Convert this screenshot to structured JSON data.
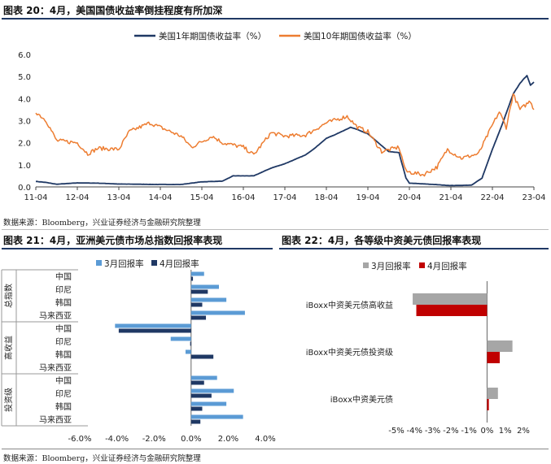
{
  "fig20": {
    "title": "图表 20：4月，美国国债收益率倒挂程度有所加深",
    "source": "数据来源：Bloomberg，兴业证券经济与金融研究院整理"
  },
  "fig21": {
    "title": "图表 21：4月，亚洲美元债市场总指数回报率表现"
  },
  "fig22": {
    "title": "图表 22：4月，各等级中资美元债回报率表现"
  },
  "bottom_source": "数据来源：Bloomberg，兴业证券经济与金融研究院整理",
  "colors": {
    "navy": "#1f3864",
    "orange": "#ed7d31",
    "light_blue": "#5b9bd5",
    "grey": "#a6a6a6",
    "red": "#c00000"
  },
  "chart_data": [
    {
      "id": "fig20",
      "type": "line",
      "x_tick_labels": [
        "11-04",
        "12-04",
        "13-04",
        "14-04",
        "15-04",
        "16-04",
        "17-04",
        "18-04",
        "19-04",
        "20-04",
        "21-04",
        "22-04",
        "23-04"
      ],
      "x_range": [
        "2011-04",
        "2023-04"
      ],
      "y_tick_labels": [
        "0.0",
        "1.0",
        "2.0",
        "3.0",
        "4.0",
        "5.0",
        "6.0"
      ],
      "ylim": [
        0,
        6
      ],
      "legend_position": "top",
      "series": [
        {
          "name": "美国1年期国债收益率（%）",
          "color": "#1f3864",
          "points": [
            [
              "2011-04",
              0.25
            ],
            [
              "2011-07",
              0.2
            ],
            [
              "2011-10",
              0.12
            ],
            [
              "2012-04",
              0.18
            ],
            [
              "2012-10",
              0.17
            ],
            [
              "2013-04",
              0.13
            ],
            [
              "2013-10",
              0.12
            ],
            [
              "2014-04",
              0.11
            ],
            [
              "2014-10",
              0.11
            ],
            [
              "2015-04",
              0.23
            ],
            [
              "2015-10",
              0.26
            ],
            [
              "2016-01",
              0.5
            ],
            [
              "2016-07",
              0.5
            ],
            [
              "2016-12",
              0.85
            ],
            [
              "2017-04",
              1.05
            ],
            [
              "2017-10",
              1.45
            ],
            [
              "2018-01",
              1.8
            ],
            [
              "2018-04",
              2.2
            ],
            [
              "2018-07",
              2.4
            ],
            [
              "2018-11",
              2.7
            ],
            [
              "2019-01",
              2.6
            ],
            [
              "2019-04",
              2.4
            ],
            [
              "2019-07",
              2.0
            ],
            [
              "2019-10",
              1.6
            ],
            [
              "2020-01",
              1.55
            ],
            [
              "2020-03",
              0.4
            ],
            [
              "2020-04",
              0.17
            ],
            [
              "2020-10",
              0.12
            ],
            [
              "2021-04",
              0.06
            ],
            [
              "2021-10",
              0.08
            ],
            [
              "2022-01",
              0.4
            ],
            [
              "2022-04",
              1.7
            ],
            [
              "2022-07",
              2.9
            ],
            [
              "2022-10",
              4.2
            ],
            [
              "2022-12",
              4.7
            ],
            [
              "2023-02",
              5.05
            ],
            [
              "2023-03",
              4.6
            ],
            [
              "2023-04",
              4.75
            ]
          ]
        },
        {
          "name": "美国10年期国债收益率（%）",
          "color": "#ed7d31",
          "points": [
            [
              "2011-04",
              3.4
            ],
            [
              "2011-07",
              3.0
            ],
            [
              "2011-10",
              2.1
            ],
            [
              "2012-04",
              2.0
            ],
            [
              "2012-07",
              1.5
            ],
            [
              "2012-10",
              1.75
            ],
            [
              "2013-04",
              1.7
            ],
            [
              "2013-07",
              2.5
            ],
            [
              "2013-10",
              2.7
            ],
            [
              "2014-01",
              2.9
            ],
            [
              "2014-04",
              2.7
            ],
            [
              "2014-10",
              2.3
            ],
            [
              "2015-01",
              1.8
            ],
            [
              "2015-07",
              2.3
            ],
            [
              "2015-10",
              2.0
            ],
            [
              "2016-04",
              1.8
            ],
            [
              "2016-07",
              1.45
            ],
            [
              "2016-12",
              2.45
            ],
            [
              "2017-04",
              2.3
            ],
            [
              "2017-10",
              2.35
            ],
            [
              "2018-04",
              2.9
            ],
            [
              "2018-10",
              3.2
            ],
            [
              "2019-01",
              2.7
            ],
            [
              "2019-04",
              2.5
            ],
            [
              "2019-08",
              1.6
            ],
            [
              "2020-01",
              1.8
            ],
            [
              "2020-03",
              0.7
            ],
            [
              "2020-08",
              0.55
            ],
            [
              "2020-12",
              0.9
            ],
            [
              "2021-03",
              1.7
            ],
            [
              "2021-07",
              1.3
            ],
            [
              "2021-12",
              1.5
            ],
            [
              "2022-04",
              2.8
            ],
            [
              "2022-06",
              3.4
            ],
            [
              "2022-08",
              2.7
            ],
            [
              "2022-10",
              4.2
            ],
            [
              "2022-12",
              3.5
            ],
            [
              "2023-03",
              3.9
            ],
            [
              "2023-04",
              3.5
            ]
          ]
        }
      ]
    },
    {
      "id": "fig21",
      "type": "bar",
      "orientation": "horizontal",
      "groups": [
        {
          "name": "总指数",
          "categories": [
            "中国",
            "印尼",
            "韩国",
            "马来西亚"
          ]
        },
        {
          "name": "高收益",
          "categories": [
            "中国",
            "印尼",
            "韩国",
            "马来西亚"
          ]
        },
        {
          "name": "投资级",
          "categories": [
            "中国",
            "印尼",
            "韩国",
            "马来西亚"
          ]
        }
      ],
      "legend_position": "top",
      "series": [
        {
          "name": "3月回报率",
          "color": "#5b9bd5",
          "values": [
            0.7,
            1.5,
            1.9,
            2.9,
            -4.1,
            -1.1,
            -0.3,
            0,
            1.4,
            2.3,
            1.9,
            2.8
          ]
        },
        {
          "name": "4月回报率",
          "color": "#1f3864",
          "values": [
            0.1,
            0.9,
            0.6,
            0.8,
            -3.9,
            -0.05,
            1.2,
            0,
            0.7,
            1.1,
            0.6,
            0.5
          ]
        }
      ],
      "x_tick_labels": [
        "-6.0%",
        "-4.0%",
        "-2.0%",
        "0.0%",
        "2.0%",
        "4.0%"
      ],
      "xlim": [
        -6,
        4
      ]
    },
    {
      "id": "fig22",
      "type": "bar",
      "orientation": "horizontal",
      "categories": [
        "iBoxx中资美元债高收益",
        "iBoxx中资美元债投资级",
        "iBoxx中资美元债"
      ],
      "legend_position": "top",
      "series": [
        {
          "name": "3月回报率",
          "color": "#a6a6a6",
          "values": [
            -4.1,
            1.4,
            0.6
          ]
        },
        {
          "name": "4月回报率",
          "color": "#c00000",
          "values": [
            -3.9,
            0.7,
            0.1
          ]
        }
      ],
      "x_tick_labels": [
        "-5%",
        "-4%",
        "-3%",
        "-2%",
        "-1%",
        "0%",
        "1%",
        "2%"
      ],
      "xlim": [
        -5,
        2
      ]
    }
  ]
}
